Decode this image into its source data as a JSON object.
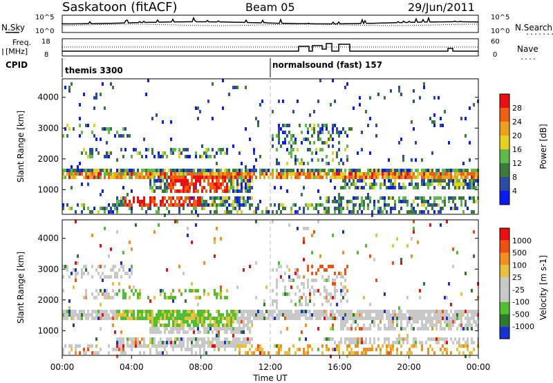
{
  "header": {
    "station": "Saskatoon (fitACF)",
    "beam": "Beam 05",
    "date": "29/Jun/2011"
  },
  "noise_panel": {
    "left_label": "N.Sky",
    "left_ticks": [
      "10^5",
      "10^0"
    ],
    "right_ticks": [
      "10^5",
      "10^0"
    ],
    "right_label": "N.Search",
    "right_legend_line": "........"
  },
  "freq_panel": {
    "left_label_line1": "Freq.",
    "left_label_line2": "[MHz]",
    "left_ticks": [
      "18",
      "8"
    ],
    "right_ticks": [
      "60",
      "0"
    ],
    "right_label": "Nave",
    "right_legend_line": "...."
  },
  "cpid": {
    "label": "CPID",
    "segments": [
      {
        "start_hour": 0,
        "label": "themis 3300"
      },
      {
        "start_hour": 12,
        "label": "normalsound (fast) 157"
      }
    ]
  },
  "colors": {
    "power": [
      "#0a1bf0",
      "#2b4aa5",
      "#3c7a3c",
      "#5dbb4a",
      "#e8d020",
      "#f0a020",
      "#f06010",
      "#e81010"
    ],
    "velocity": [
      "#e81010",
      "#f05010",
      "#f09020",
      "#e8c040",
      "#c8c8c8",
      "#c8c8c8",
      "#50c030",
      "#2c7a2c",
      "#1a30d0"
    ]
  },
  "chart_data": [
    {
      "type": "heatmap",
      "panel": "power",
      "ylabel": "Slant Range [km]",
      "yticks": [
        "4000",
        "3000",
        "2000",
        "1000"
      ],
      "ylim": [
        200,
        4600
      ],
      "xlim": [
        0,
        24
      ],
      "colorbar_label": "Power [dB]",
      "colorbar_ticks": [
        "28",
        "24",
        "20",
        "16",
        "12",
        "8",
        "4"
      ],
      "colorbar_range": [
        0,
        32
      ]
    },
    {
      "type": "heatmap",
      "panel": "velocity",
      "ylabel": "Slant Range [km]",
      "yticks": [
        "4000",
        "3000",
        "2000",
        "1000"
      ],
      "ylim": [
        200,
        4600
      ],
      "xlim": [
        0,
        24
      ],
      "colorbar_label": "Velocity [m s-1]",
      "colorbar_ticks": [
        "1000",
        "500",
        "100",
        "25",
        "-25",
        "-100",
        "-500",
        "-1000"
      ]
    }
  ],
  "x_axis": {
    "ticks": [
      "00:00",
      "04:00",
      "08:00",
      "12:00",
      "16:00",
      "20:00",
      "00:00"
    ],
    "label": "Time UT"
  }
}
